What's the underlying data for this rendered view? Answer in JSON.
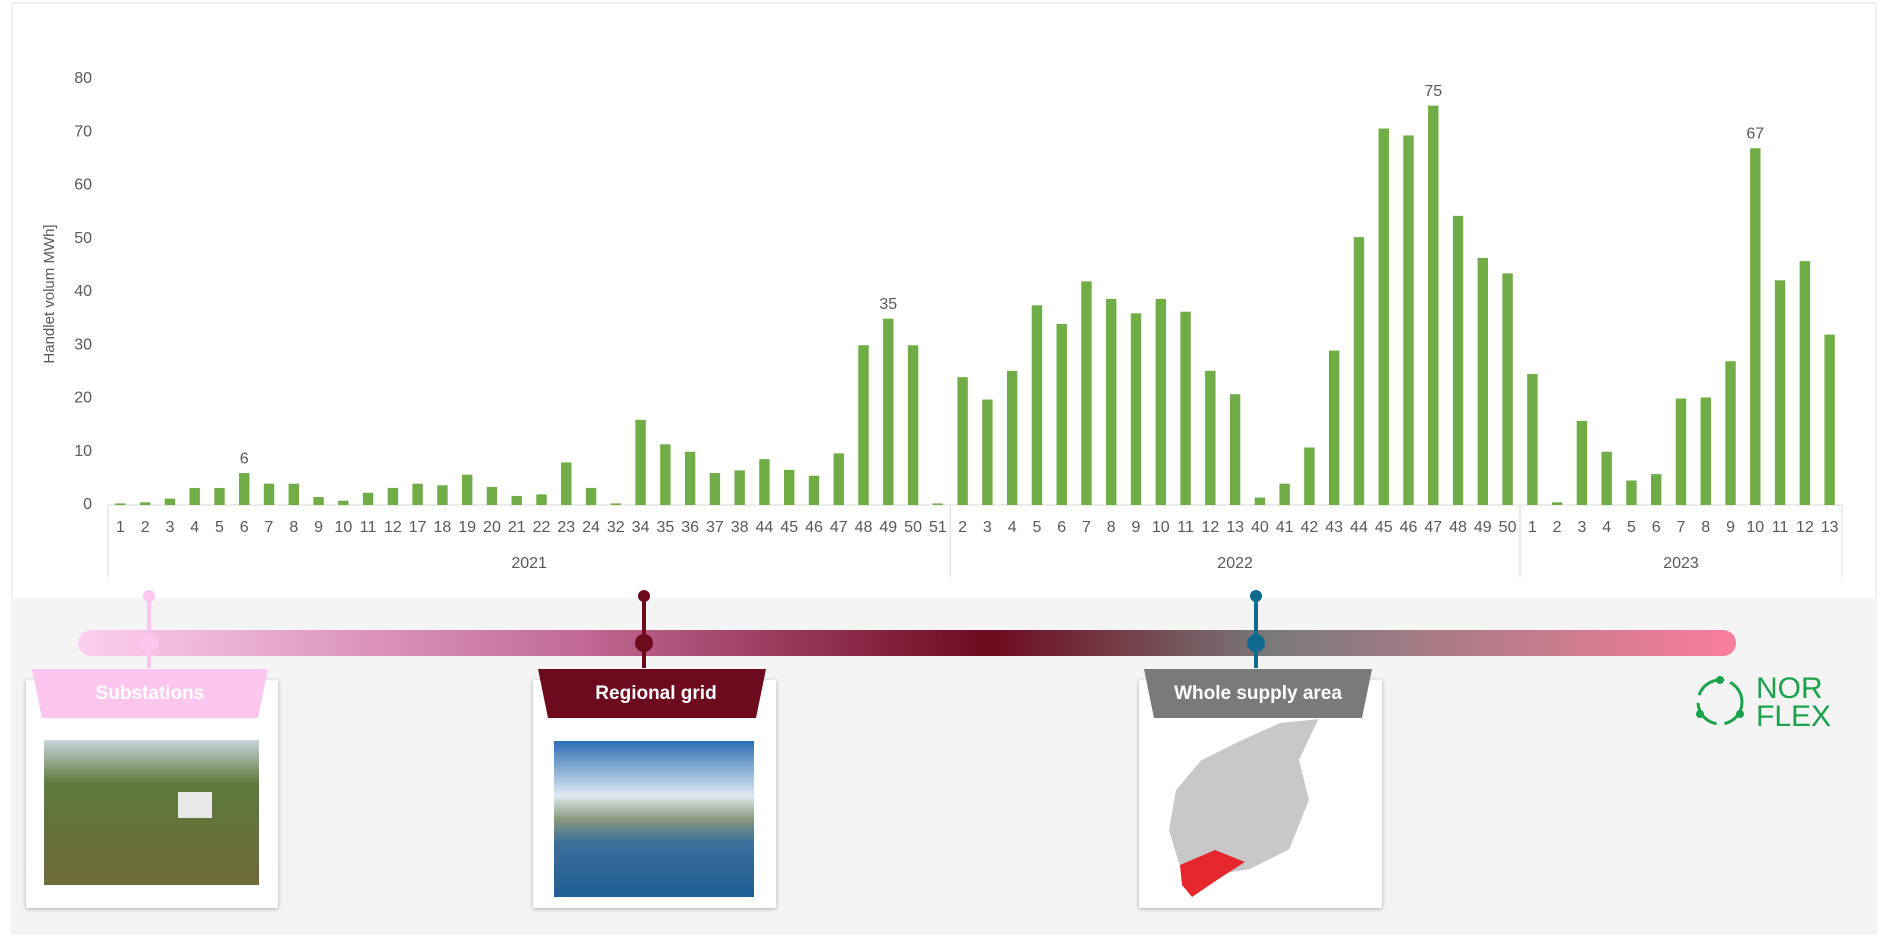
{
  "chart_data": {
    "type": "bar",
    "y_label": "Handlet volum MWh]",
    "color": "#70ad47",
    "ylim": [
      0,
      80
    ],
    "yticks": [
      0,
      10,
      20,
      30,
      40,
      50,
      60,
      70,
      80
    ],
    "groups": [
      {
        "name": "2021",
        "categories": [
          "1",
          "2",
          "3",
          "4",
          "5",
          "6",
          "7",
          "8",
          "9",
          "10",
          "11",
          "12",
          "17",
          "18",
          "19",
          "20",
          "21",
          "22",
          "23",
          "24",
          "32",
          "34",
          "35",
          "36",
          "37",
          "38",
          "44",
          "45",
          "46",
          "47",
          "48",
          "49",
          "50",
          "51"
        ],
        "values": [
          0.3,
          0.5,
          1.2,
          3.2,
          3.2,
          6,
          4,
          4,
          1.5,
          0.8,
          2.3,
          3.2,
          4,
          3.7,
          5.7,
          3.4,
          1.7,
          2,
          8,
          3.2,
          0.3,
          16,
          11.4,
          10,
          6,
          6.5,
          8.6,
          6.6,
          5.5,
          9.7,
          30,
          35,
          30,
          0.3
        ],
        "value_labels": [
          null,
          null,
          null,
          null,
          null,
          "6",
          null,
          null,
          null,
          null,
          null,
          null,
          null,
          null,
          null,
          null,
          null,
          null,
          null,
          null,
          null,
          null,
          null,
          null,
          null,
          null,
          null,
          null,
          null,
          null,
          null,
          "35",
          null,
          null
        ]
      },
      {
        "name": "2022",
        "categories": [
          "2",
          "3",
          "4",
          "5",
          "6",
          "7",
          "8",
          "9",
          "10",
          "11",
          "12",
          "13",
          "40",
          "41",
          "42",
          "43",
          "44",
          "45",
          "46",
          "47",
          "48",
          "49",
          "50"
        ],
        "values": [
          24,
          19.8,
          25.2,
          37.5,
          34,
          42,
          38.7,
          36,
          38.7,
          36.3,
          25.2,
          20.8,
          1.4,
          4,
          10.8,
          29,
          50.3,
          70.7,
          69.4,
          75,
          54.3,
          46.4,
          43.5
        ],
        "value_labels": [
          null,
          null,
          null,
          null,
          null,
          null,
          null,
          null,
          null,
          null,
          null,
          null,
          null,
          null,
          null,
          null,
          null,
          null,
          null,
          "75",
          null,
          null,
          null
        ]
      },
      {
        "name": "2023",
        "categories": [
          "1",
          "2",
          "3",
          "4",
          "5",
          "6",
          "7",
          "8",
          "9",
          "10",
          "11",
          "12",
          "13"
        ],
        "values": [
          24.6,
          0.5,
          15.8,
          10,
          4.6,
          5.8,
          20,
          20.2,
          27,
          67,
          42.2,
          45.8,
          32
        ],
        "value_labels": [
          null,
          null,
          null,
          null,
          null,
          null,
          null,
          null,
          null,
          "67",
          null,
          null,
          null
        ]
      }
    ]
  },
  "timeline": {
    "stages": [
      "Substations",
      "Regional grid",
      "Whole supply area"
    ]
  },
  "logo": {
    "line1": "NOR",
    "line2": "FLEX"
  }
}
